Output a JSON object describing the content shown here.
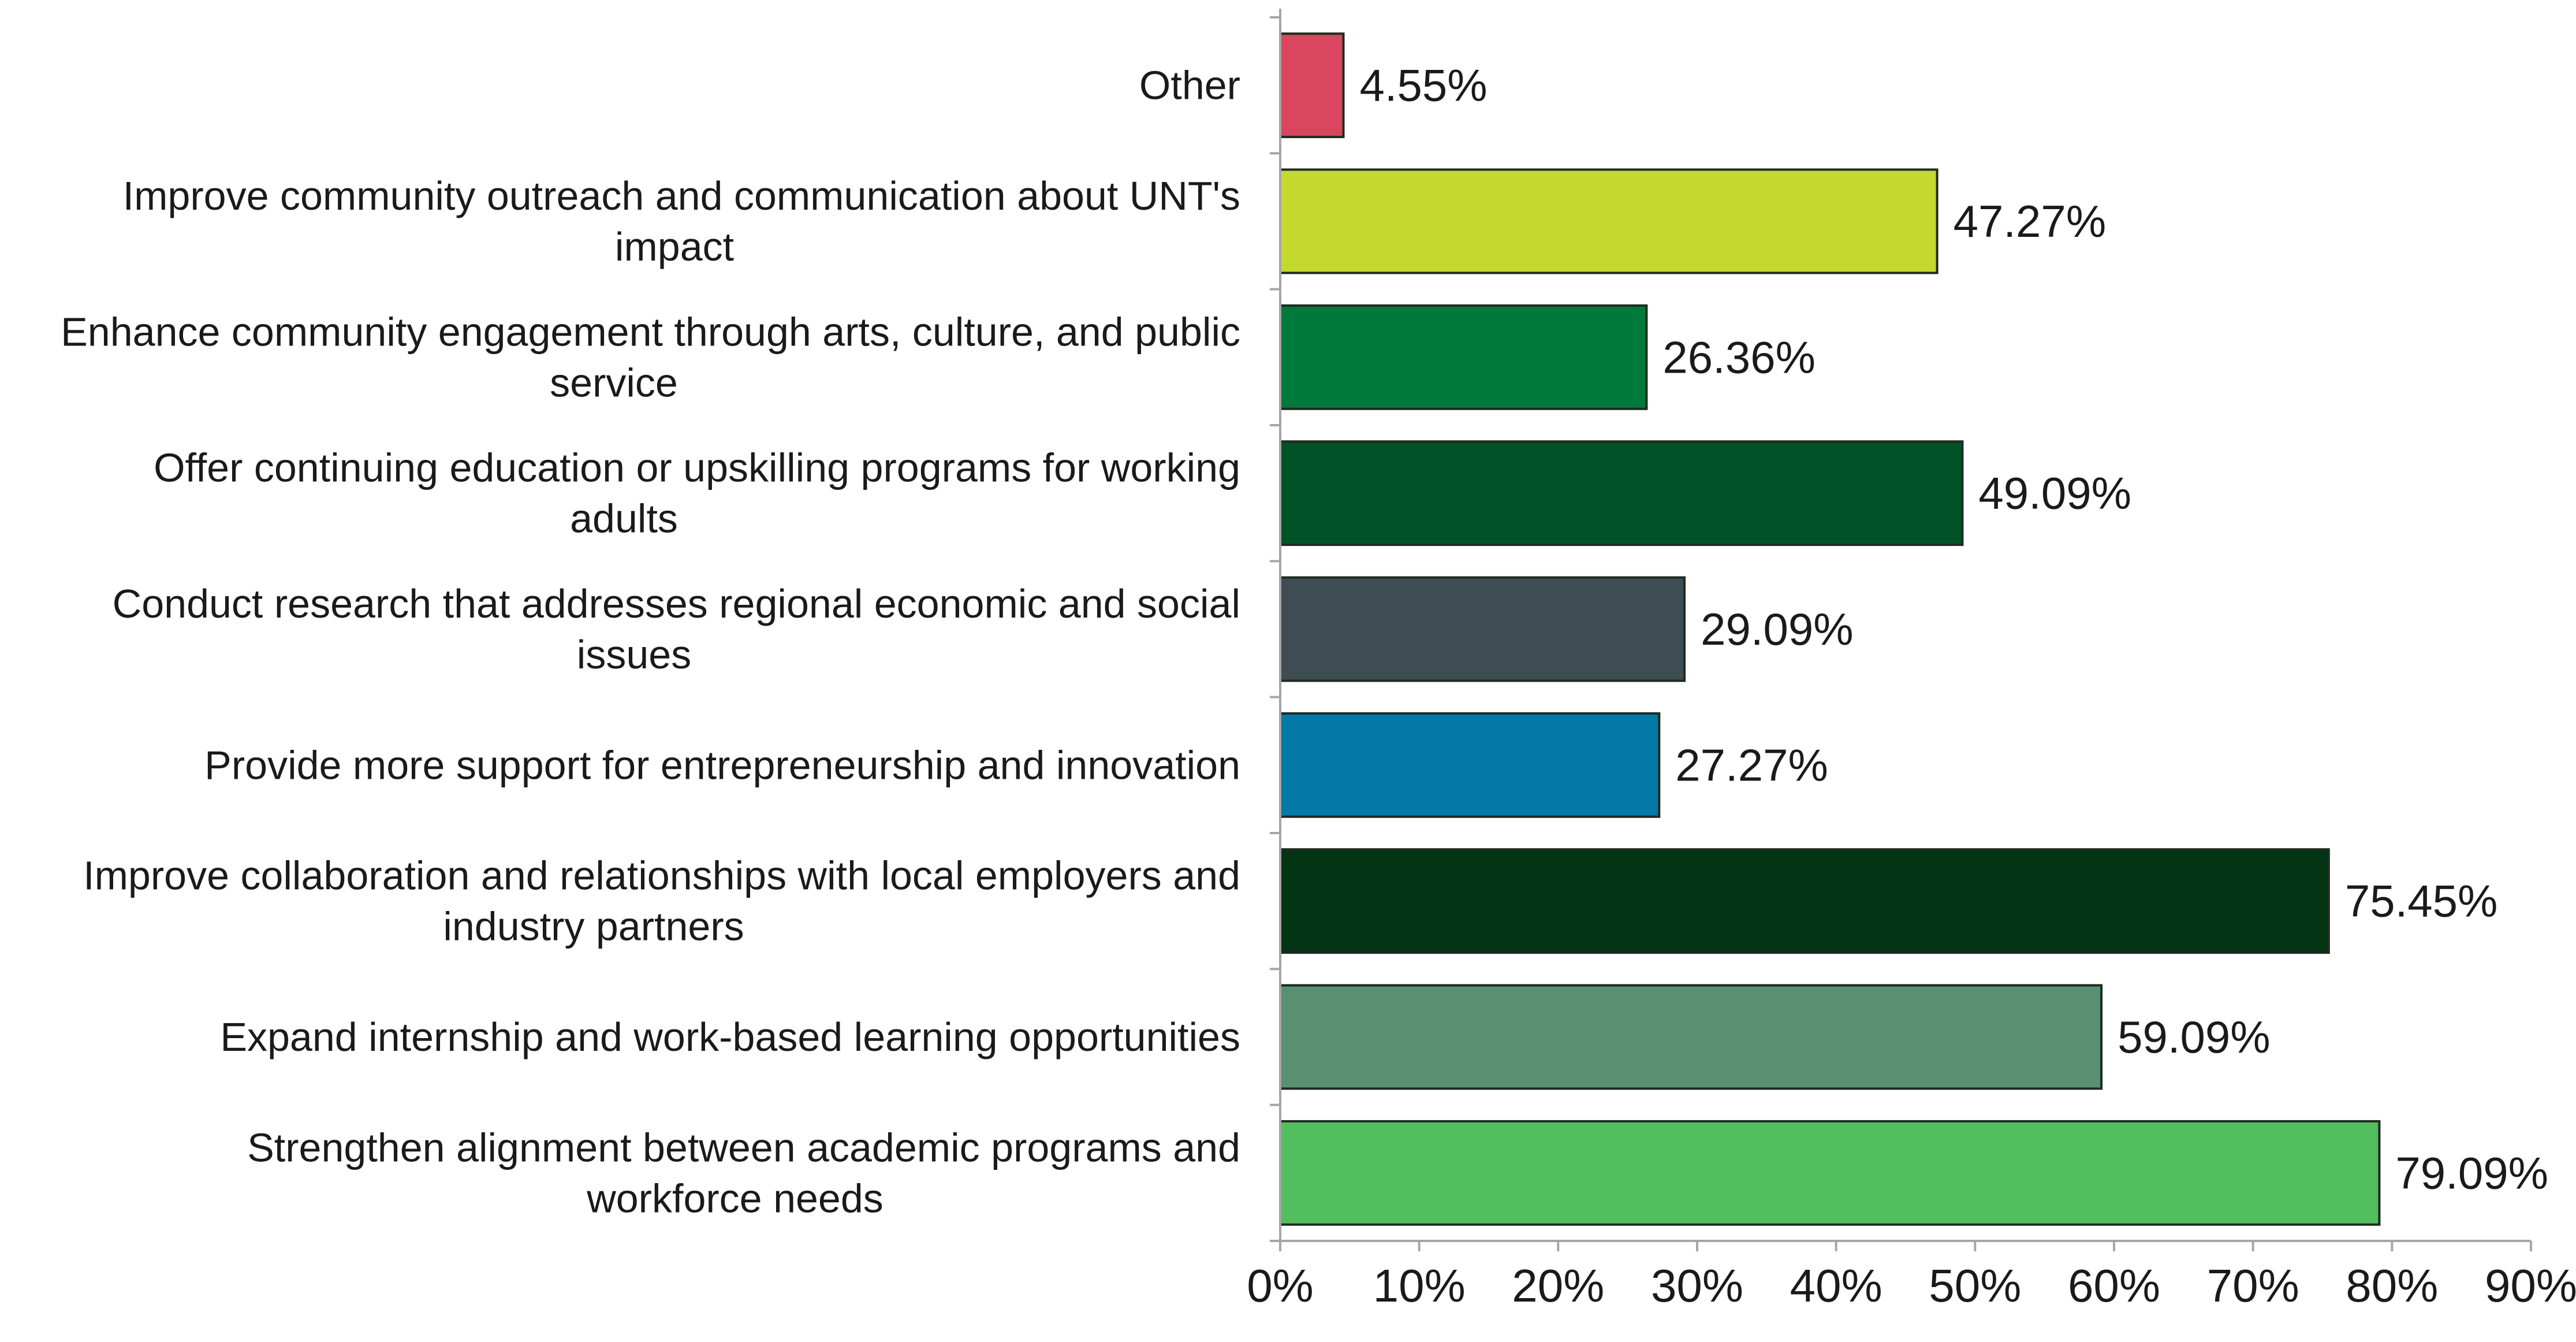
{
  "chart_data": {
    "type": "bar",
    "orientation": "horizontal",
    "title": "",
    "xlabel": "",
    "ylabel": "",
    "xlim": [
      0,
      90
    ],
    "x_ticks": [
      "0%",
      "10%",
      "20%",
      "30%",
      "40%",
      "50%",
      "60%",
      "70%",
      "80%",
      "90%"
    ],
    "grid": false,
    "legend": "none",
    "categories": [
      {
        "lines": [
          "Other"
        ],
        "value": 4.55,
        "value_label": "4.55%",
        "color": "#d9465e"
      },
      {
        "lines": [
          "Improve community outreach and communication about UNT's",
          "impact"
        ],
        "value": 47.27,
        "value_label": "47.27%",
        "color": "#c3d92f"
      },
      {
        "lines": [
          "Enhance community engagement through arts, culture, and public",
          "service"
        ],
        "value": 26.36,
        "value_label": "26.36%",
        "color": "#007a3a"
      },
      {
        "lines": [
          "Offer continuing education or upskilling programs for working",
          "adults"
        ],
        "value": 49.09,
        "value_label": "49.09%",
        "color": "#005227"
      },
      {
        "lines": [
          "Conduct research that addresses regional economic and social",
          "issues"
        ],
        "value": 29.09,
        "value_label": "29.09%",
        "color": "#3e4c53"
      },
      {
        "lines": [
          "Provide more support for entrepreneurship and innovation"
        ],
        "value": 27.27,
        "value_label": "27.27%",
        "color": "#0478a6"
      },
      {
        "lines": [
          "Improve collaboration and relationships with local employers and",
          "industry partners"
        ],
        "value": 75.45,
        "value_label": "75.45%",
        "color": "#033414"
      },
      {
        "lines": [
          "Expand internship and work-based learning opportunities"
        ],
        "value": 59.09,
        "value_label": "59.09%",
        "color": "#5a9072"
      },
      {
        "lines": [
          "Strengthen alignment between academic programs and",
          "workforce needs"
        ],
        "value": 79.09,
        "value_label": "79.09%",
        "color": "#52be5e"
      }
    ],
    "colors": {
      "axis": "#a6a6a6",
      "bar_outline": "#1f2b1f",
      "text": "#1a1a1a"
    }
  }
}
